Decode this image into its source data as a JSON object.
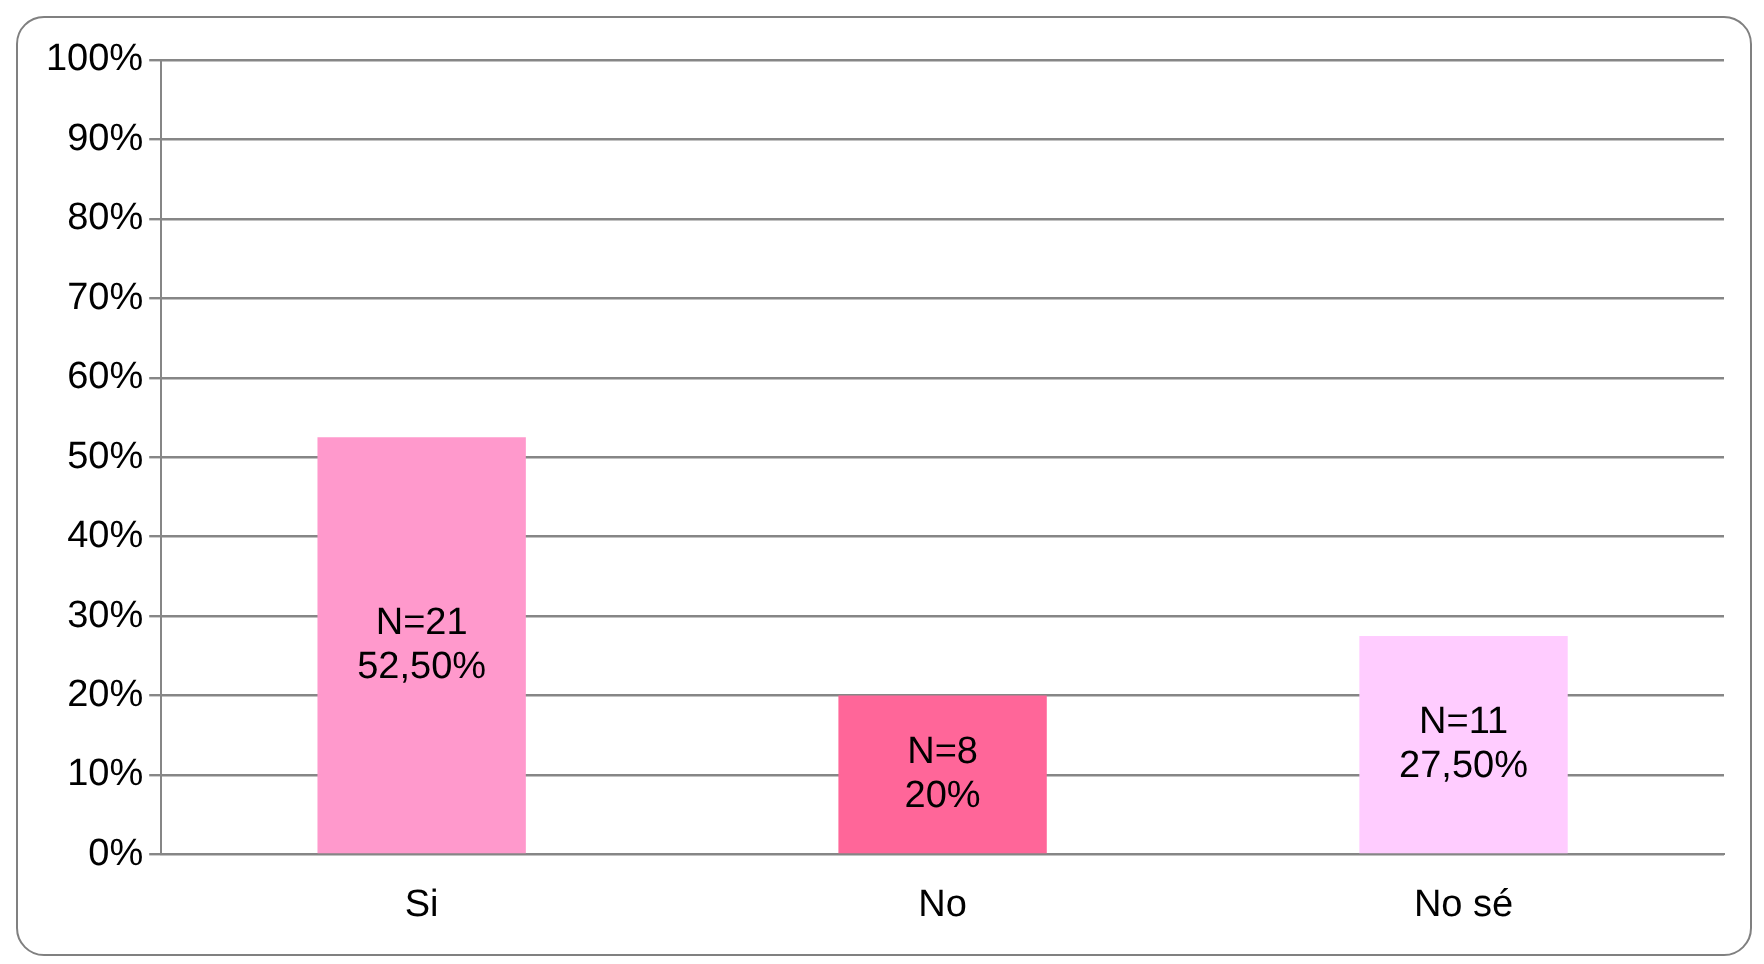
{
  "chart_data": {
    "type": "bar",
    "categories": [
      "Si",
      "No",
      "No sé"
    ],
    "values": [
      52.5,
      20,
      27.5
    ],
    "colors": [
      "#ff99cc",
      "#ff6699",
      "#ffccff"
    ],
    "value_labels": [
      "N=21\n52,50%",
      "N=8\n20%",
      "N=11\n27,50%"
    ],
    "ylim": [
      0,
      100
    ],
    "yticks": [
      {
        "value": 0,
        "label": "0%"
      },
      {
        "value": 10,
        "label": "10%"
      },
      {
        "value": 20,
        "label": "20%"
      },
      {
        "value": 30,
        "label": "30%"
      },
      {
        "value": 40,
        "label": "40%"
      },
      {
        "value": 50,
        "label": "50%"
      },
      {
        "value": 60,
        "label": "60%"
      },
      {
        "value": 70,
        "label": "70%"
      },
      {
        "value": 80,
        "label": "80%"
      },
      {
        "value": 90,
        "label": "90%"
      },
      {
        "value": 100,
        "label": "100%"
      }
    ],
    "grid": "y",
    "legend": false
  }
}
